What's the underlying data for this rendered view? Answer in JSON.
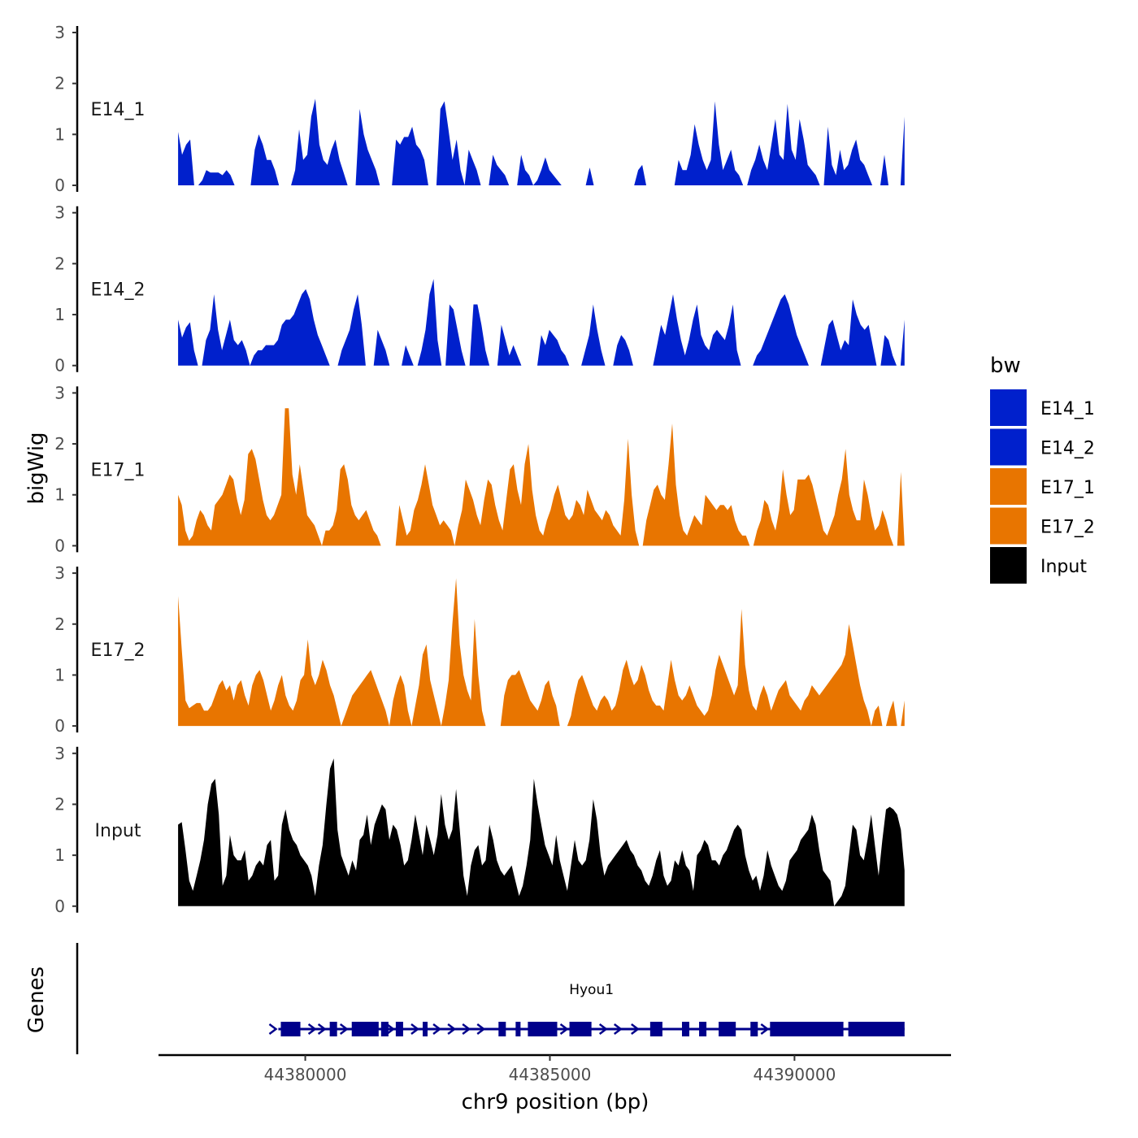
{
  "chart_data": {
    "type": "area",
    "ylabel": "bigWig",
    "xlabel": "chr9 position (bp)",
    "x_range": [
      44377000,
      44393200
    ],
    "x_ticks": [
      44380000,
      44385000,
      44390000
    ],
    "x_tick_labels": [
      "44380000",
      "44385000",
      "44390000"
    ],
    "track_x_range": [
      44377400,
      44392250
    ],
    "y_range": [
      0,
      3
    ],
    "y_ticks": [
      0,
      1,
      2,
      3
    ],
    "y_tick_labels": [
      "0",
      "1",
      "2",
      "3"
    ],
    "legend_title": "bw",
    "series": [
      {
        "name": "E14_1",
        "color": "#0020CC",
        "values": [
          1.05,
          0.6,
          0.8,
          0.9,
          0.0,
          0.0,
          0.1,
          0.3,
          0.25,
          0.25,
          0.25,
          0.2,
          0.3,
          0.2,
          0.0,
          0.0,
          0.0,
          0.0,
          0.0,
          0.7,
          1.0,
          0.8,
          0.5,
          0.5,
          0.3,
          0.0,
          0.0,
          0.0,
          0.0,
          0.3,
          1.1,
          0.5,
          0.6,
          1.35,
          1.7,
          0.8,
          0.5,
          0.4,
          0.7,
          0.9,
          0.5,
          0.25,
          0.0,
          0.0,
          0.0,
          1.5,
          1.0,
          0.7,
          0.5,
          0.3,
          0.0,
          0.0,
          0.0,
          0.0,
          0.9,
          0.8,
          0.95,
          0.95,
          1.15,
          0.8,
          0.7,
          0.5,
          0.0,
          0.0,
          0.0,
          1.5,
          1.65,
          1.1,
          0.5,
          0.9,
          0.3,
          0.0,
          0.7,
          0.5,
          0.3,
          0.0,
          0.0,
          0.0,
          0.6,
          0.4,
          0.3,
          0.2,
          0.0,
          0.0,
          0.0,
          0.6,
          0.3,
          0.2,
          0.0,
          0.1,
          0.3,
          0.55,
          0.3,
          0.2,
          0.1,
          0.0,
          0.0,
          0.0,
          0.0,
          0.0,
          0.0,
          0.0,
          0.35,
          0.0,
          0.0,
          0.0,
          0.0,
          0.0,
          0.0,
          0.0,
          0.0,
          0.0,
          0.0,
          0.0,
          0.3,
          0.4,
          0.0,
          0.0,
          0.0,
          0.0,
          0.0,
          0.0,
          0.0,
          0.0,
          0.5,
          0.3,
          0.3,
          0.6,
          1.2,
          0.8,
          0.5,
          0.3,
          0.5,
          1.65,
          0.8,
          0.3,
          0.5,
          0.7,
          0.3,
          0.2,
          0.0,
          0.0,
          0.3,
          0.5,
          0.8,
          0.5,
          0.3,
          0.8,
          1.3,
          0.6,
          0.5,
          1.6,
          0.7,
          0.5,
          1.3,
          0.9,
          0.4,
          0.3,
          0.2,
          0.0,
          0.0,
          1.15,
          0.4,
          0.2,
          0.7,
          0.3,
          0.4,
          0.7,
          0.9,
          0.5,
          0.4,
          0.2,
          0.0,
          0.0,
          0.0,
          0.6,
          0.0,
          0.0,
          0.0,
          0.0,
          1.35
        ]
      },
      {
        "name": "E14_2",
        "color": "#0020CC",
        "values": [
          0.9,
          0.55,
          0.75,
          0.85,
          0.3,
          0.0,
          0.0,
          0.5,
          0.7,
          1.4,
          0.7,
          0.3,
          0.6,
          0.9,
          0.5,
          0.4,
          0.5,
          0.3,
          0.0,
          0.2,
          0.3,
          0.3,
          0.4,
          0.4,
          0.4,
          0.5,
          0.8,
          0.9,
          0.9,
          1.0,
          1.2,
          1.4,
          1.5,
          1.3,
          0.9,
          0.6,
          0.4,
          0.2,
          0.0,
          0.0,
          0.0,
          0.3,
          0.5,
          0.7,
          1.1,
          1.4,
          0.8,
          0.0,
          0.0,
          0.0,
          0.7,
          0.5,
          0.3,
          0.0,
          0.0,
          0.0,
          0.0,
          0.4,
          0.2,
          0.0,
          0.0,
          0.3,
          0.7,
          1.4,
          1.7,
          0.5,
          0.0,
          0.0,
          1.2,
          1.1,
          0.7,
          0.3,
          0.0,
          0.0,
          1.2,
          1.2,
          0.8,
          0.3,
          0.0,
          0.0,
          0.0,
          0.8,
          0.5,
          0.2,
          0.4,
          0.2,
          0.0,
          0.0,
          0.0,
          0.0,
          0.0,
          0.6,
          0.4,
          0.7,
          0.6,
          0.5,
          0.3,
          0.2,
          0.0,
          0.0,
          0.0,
          0.0,
          0.3,
          0.6,
          1.2,
          0.7,
          0.3,
          0.0,
          0.0,
          0.0,
          0.4,
          0.6,
          0.5,
          0.3,
          0.0,
          0.0,
          0.0,
          0.0,
          0.0,
          0.0,
          0.4,
          0.8,
          0.6,
          1.0,
          1.4,
          0.9,
          0.5,
          0.2,
          0.5,
          0.9,
          1.2,
          0.6,
          0.4,
          0.3,
          0.6,
          0.7,
          0.6,
          0.5,
          0.8,
          1.2,
          0.3,
          0.0,
          0.0,
          0.0,
          0.0,
          0.2,
          0.3,
          0.5,
          0.7,
          0.9,
          1.1,
          1.3,
          1.4,
          1.2,
          0.9,
          0.6,
          0.4,
          0.2,
          0.0,
          0.0,
          0.0,
          0.0,
          0.4,
          0.8,
          0.9,
          0.6,
          0.3,
          0.5,
          0.4,
          1.3,
          1.0,
          0.8,
          0.7,
          0.8,
          0.4,
          0.0,
          0.0,
          0.6,
          0.5,
          0.2,
          0.0,
          0.0,
          0.9
        ]
      },
      {
        "name": "E17_1",
        "color": "#E87500",
        "values": [
          1.0,
          0.8,
          0.3,
          0.1,
          0.2,
          0.5,
          0.7,
          0.6,
          0.4,
          0.3,
          0.8,
          0.9,
          1.0,
          1.2,
          1.4,
          1.3,
          0.9,
          0.6,
          0.9,
          1.8,
          1.9,
          1.7,
          1.3,
          0.9,
          0.6,
          0.5,
          0.6,
          0.8,
          1.0,
          2.7,
          2.7,
          1.4,
          1.0,
          1.6,
          1.1,
          0.6,
          0.5,
          0.4,
          0.2,
          0.0,
          0.3,
          0.3,
          0.4,
          0.7,
          1.5,
          1.6,
          1.3,
          0.8,
          0.6,
          0.5,
          0.6,
          0.7,
          0.5,
          0.3,
          0.2,
          0.0,
          0.0,
          0.0,
          0.0,
          0.0,
          0.8,
          0.5,
          0.2,
          0.3,
          0.7,
          0.9,
          1.2,
          1.6,
          1.2,
          0.8,
          0.6,
          0.4,
          0.5,
          0.4,
          0.3,
          0.0,
          0.4,
          0.7,
          1.3,
          1.1,
          0.9,
          0.6,
          0.4,
          0.9,
          1.3,
          1.2,
          0.8,
          0.5,
          0.3,
          0.9,
          1.5,
          1.6,
          1.1,
          0.8,
          1.6,
          2.0,
          1.1,
          0.6,
          0.3,
          0.2,
          0.5,
          0.7,
          1.0,
          1.2,
          0.9,
          0.6,
          0.5,
          0.6,
          0.9,
          0.8,
          0.6,
          1.1,
          0.9,
          0.7,
          0.6,
          0.5,
          0.7,
          0.6,
          0.4,
          0.3,
          0.2,
          0.9,
          2.1,
          1.0,
          0.3,
          0.0,
          0.0,
          0.5,
          0.8,
          1.1,
          1.2,
          1.0,
          0.9,
          1.6,
          2.4,
          1.2,
          0.6,
          0.3,
          0.2,
          0.4,
          0.6,
          0.5,
          0.4,
          1.0,
          0.9,
          0.8,
          0.7,
          0.8,
          0.8,
          0.7,
          0.8,
          0.5,
          0.3,
          0.2,
          0.2,
          0.0,
          0.0,
          0.3,
          0.5,
          0.9,
          0.8,
          0.5,
          0.3,
          0.7,
          1.5,
          1.0,
          0.6,
          0.7,
          1.3,
          1.3,
          1.3,
          1.4,
          1.2,
          0.9,
          0.6,
          0.3,
          0.2,
          0.4,
          0.6,
          1.0,
          1.3,
          1.9,
          1.0,
          0.7,
          0.5,
          0.5,
          1.3,
          1.0,
          0.6,
          0.3,
          0.4,
          0.7,
          0.5,
          0.2,
          0.0,
          0.0,
          1.45,
          0.0
        ]
      },
      {
        "name": "E17_2",
        "color": "#E87500",
        "values": [
          2.55,
          1.5,
          0.5,
          0.35,
          0.4,
          0.45,
          0.45,
          0.3,
          0.3,
          0.4,
          0.6,
          0.8,
          0.9,
          0.7,
          0.8,
          0.5,
          0.8,
          0.9,
          0.6,
          0.4,
          0.8,
          1.0,
          1.1,
          0.9,
          0.6,
          0.3,
          0.5,
          0.8,
          1.0,
          0.6,
          0.4,
          0.3,
          0.5,
          0.9,
          1.0,
          1.7,
          1.0,
          0.8,
          1.0,
          1.3,
          1.1,
          0.8,
          0.6,
          0.3,
          0.0,
          0.2,
          0.4,
          0.6,
          0.7,
          0.8,
          0.9,
          1.0,
          1.1,
          0.9,
          0.7,
          0.5,
          0.3,
          0.0,
          0.5,
          0.8,
          1.0,
          0.8,
          0.3,
          0.0,
          0.4,
          0.8,
          1.4,
          1.6,
          0.9,
          0.6,
          0.3,
          0.0,
          0.4,
          0.9,
          2.0,
          2.9,
          1.6,
          1.0,
          0.7,
          0.5,
          2.1,
          1.0,
          0.3,
          0.0,
          0.0,
          0.0,
          0.0,
          0.0,
          0.6,
          0.9,
          1.0,
          1.0,
          1.1,
          0.9,
          0.7,
          0.5,
          0.4,
          0.3,
          0.5,
          0.8,
          0.9,
          0.6,
          0.4,
          0.0,
          0.0,
          0.0,
          0.2,
          0.6,
          0.9,
          1.0,
          0.8,
          0.6,
          0.4,
          0.3,
          0.5,
          0.6,
          0.5,
          0.3,
          0.4,
          0.7,
          1.1,
          1.3,
          1.0,
          0.8,
          0.9,
          1.2,
          1.0,
          0.7,
          0.5,
          0.4,
          0.4,
          0.3,
          0.8,
          1.3,
          0.9,
          0.6,
          0.5,
          0.6,
          0.8,
          0.6,
          0.4,
          0.3,
          0.2,
          0.3,
          0.6,
          1.1,
          1.4,
          1.2,
          1.0,
          0.8,
          0.6,
          0.8,
          2.3,
          1.2,
          0.7,
          0.4,
          0.3,
          0.6,
          0.8,
          0.6,
          0.3,
          0.5,
          0.7,
          0.8,
          0.9,
          0.6,
          0.5,
          0.4,
          0.3,
          0.5,
          0.6,
          0.8,
          0.7,
          0.6,
          0.7,
          0.8,
          0.9,
          1.0,
          1.1,
          1.2,
          1.4,
          2.0,
          1.6,
          1.2,
          0.8,
          0.5,
          0.3,
          0.0,
          0.3,
          0.4,
          0.0,
          0.0,
          0.3,
          0.5,
          0.0,
          0.0,
          0.5
        ]
      },
      {
        "name": "Input",
        "color": "#000000",
        "values": [
          1.6,
          1.65,
          1.1,
          0.5,
          0.3,
          0.6,
          0.9,
          1.3,
          2.0,
          2.4,
          2.5,
          1.8,
          0.4,
          0.6,
          1.4,
          1.0,
          0.9,
          0.9,
          1.1,
          0.5,
          0.6,
          0.8,
          0.9,
          0.8,
          1.2,
          1.3,
          0.5,
          0.6,
          1.6,
          1.9,
          1.5,
          1.3,
          1.2,
          1.0,
          0.9,
          0.8,
          0.6,
          0.2,
          0.8,
          1.2,
          2.0,
          2.7,
          2.9,
          1.5,
          1.0,
          0.8,
          0.6,
          0.9,
          0.7,
          1.3,
          1.4,
          1.8,
          1.2,
          1.6,
          1.8,
          2.0,
          1.9,
          1.3,
          1.6,
          1.5,
          1.2,
          0.8,
          0.9,
          1.3,
          1.8,
          1.4,
          1.0,
          1.6,
          1.3,
          1.0,
          1.4,
          2.2,
          1.6,
          1.3,
          1.5,
          2.3,
          1.5,
          0.6,
          0.2,
          0.8,
          1.1,
          1.2,
          0.8,
          0.9,
          1.6,
          1.3,
          0.9,
          0.7,
          0.6,
          0.7,
          0.8,
          0.5,
          0.2,
          0.4,
          0.8,
          1.3,
          2.5,
          2.0,
          1.6,
          1.2,
          1.0,
          0.8,
          1.4,
          0.9,
          0.6,
          0.3,
          0.8,
          1.3,
          0.9,
          0.8,
          0.9,
          1.3,
          2.1,
          1.7,
          1.0,
          0.6,
          0.8,
          0.9,
          1.0,
          1.1,
          1.2,
          1.3,
          1.1,
          1.0,
          0.8,
          0.7,
          0.5,
          0.4,
          0.6,
          0.9,
          1.1,
          0.6,
          0.4,
          0.5,
          0.9,
          0.8,
          1.1,
          0.8,
          0.7,
          0.3,
          1.0,
          1.1,
          1.3,
          1.2,
          0.9,
          0.9,
          0.8,
          1.0,
          1.1,
          1.3,
          1.5,
          1.6,
          1.5,
          1.0,
          0.7,
          0.5,
          0.6,
          0.3,
          0.6,
          1.1,
          0.8,
          0.6,
          0.4,
          0.3,
          0.5,
          0.9,
          1.0,
          1.1,
          1.3,
          1.4,
          1.5,
          1.8,
          1.6,
          1.1,
          0.7,
          0.6,
          0.5,
          0.0,
          0.1,
          0.2,
          0.4,
          1.0,
          1.6,
          1.5,
          1.0,
          0.9,
          1.3,
          1.8,
          1.2,
          0.6,
          1.3,
          1.9,
          1.95,
          1.9,
          1.8,
          1.5,
          0.7
        ]
      }
    ],
    "genes_label": "Genes",
    "gene": {
      "name": "Hyou1",
      "color": "#00008B",
      "start": 44379450,
      "end": 44392250,
      "exons": [
        [
          44379500,
          44379900
        ],
        [
          44380500,
          44380650
        ],
        [
          44380950,
          44381500
        ],
        [
          44381550,
          44381700
        ],
        [
          44381850,
          44382000
        ],
        [
          44382400,
          44382500
        ],
        [
          44383950,
          44384100
        ],
        [
          44384300,
          44384400
        ],
        [
          44384550,
          44385150
        ],
        [
          44385400,
          44385850
        ],
        [
          44387050,
          44387300
        ],
        [
          44387700,
          44387850
        ],
        [
          44388050,
          44388200
        ],
        [
          44388450,
          44388800
        ],
        [
          44389100,
          44389250
        ],
        [
          44389500,
          44391000
        ],
        [
          44391100,
          44392250
        ]
      ],
      "arrows": [
        44379350,
        44380150,
        44380350,
        44380800,
        44381750,
        44382250,
        44382700,
        44383000,
        44383300,
        44383600,
        44385300,
        44386100,
        44386400,
        44386750,
        44389400
      ]
    }
  }
}
